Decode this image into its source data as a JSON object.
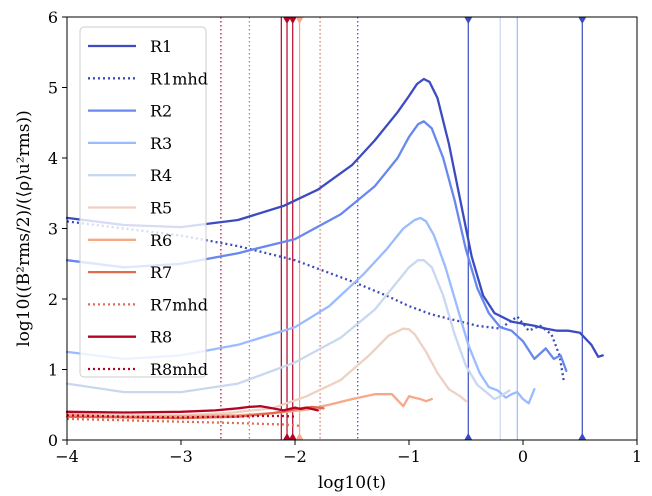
{
  "chart_data": {
    "type": "line",
    "title": "",
    "xlabel": "log10(t)",
    "ylabel": "log10((B²rms/2)/(⟨ρ⟩u²rms))",
    "xlim": [
      -4,
      1
    ],
    "ylim": [
      0,
      6
    ],
    "xticks": [
      -4,
      -3,
      -2,
      -1,
      0,
      1
    ],
    "yticks": [
      0,
      1,
      2,
      3,
      4,
      5,
      6
    ],
    "xtick_labels": [
      "−4",
      "−3",
      "−2",
      "−1",
      "0",
      "1"
    ],
    "ytick_labels": [
      "0",
      "1",
      "2",
      "3",
      "4",
      "5",
      "6"
    ],
    "grid": false,
    "legend_position": "upper-left",
    "colors": {
      "R1": "#3b4cc0",
      "R2": "#6788ee",
      "R3": "#9abbff",
      "R4": "#c9d7f0",
      "R5": "#edd1c2",
      "R6": "#f7a889",
      "R7": "#e26952",
      "R8": "#b40426"
    },
    "series": [
      {
        "name": "R1",
        "style": "solid",
        "color": "#3b4cc0",
        "x": [
          -4.0,
          -3.5,
          -3.0,
          -2.5,
          -2.1,
          -1.8,
          -1.5,
          -1.3,
          -1.1,
          -1.0,
          -0.93,
          -0.87,
          -0.82,
          -0.75,
          -0.65,
          -0.55,
          -0.45,
          -0.35,
          -0.25,
          -0.1,
          0.0,
          0.1,
          0.2,
          0.3,
          0.4,
          0.5,
          0.6,
          0.66,
          0.7
        ],
        "y": [
          3.15,
          3.05,
          3.02,
          3.12,
          3.32,
          3.55,
          3.9,
          4.25,
          4.65,
          4.88,
          5.05,
          5.12,
          5.08,
          4.85,
          4.2,
          3.4,
          2.6,
          2.05,
          1.8,
          1.68,
          1.65,
          1.62,
          1.58,
          1.55,
          1.55,
          1.52,
          1.35,
          1.18,
          1.2
        ]
      },
      {
        "name": "R1mhd",
        "style": "dotted",
        "color": "#3b4cc0",
        "x": [
          -4.0,
          -3.5,
          -3.0,
          -2.5,
          -2.0,
          -1.5,
          -1.2,
          -1.0,
          -0.8,
          -0.6,
          -0.4,
          -0.2,
          -0.05,
          0.05,
          0.15,
          0.25,
          0.32,
          0.36
        ],
        "y": [
          3.1,
          3.0,
          2.9,
          2.75,
          2.55,
          2.25,
          2.05,
          1.9,
          1.78,
          1.7,
          1.62,
          1.58,
          1.75,
          1.55,
          1.62,
          1.5,
          1.2,
          0.82
        ]
      },
      {
        "name": "R2",
        "style": "solid",
        "color": "#6788ee",
        "x": [
          -4.0,
          -3.5,
          -3.0,
          -2.5,
          -2.0,
          -1.6,
          -1.3,
          -1.1,
          -1.0,
          -0.92,
          -0.87,
          -0.8,
          -0.7,
          -0.6,
          -0.5,
          -0.4,
          -0.3,
          -0.2,
          -0.1,
          0.0,
          0.1,
          0.2,
          0.27,
          0.33,
          0.38
        ],
        "y": [
          2.55,
          2.45,
          2.5,
          2.65,
          2.85,
          3.2,
          3.6,
          4.0,
          4.3,
          4.48,
          4.52,
          4.42,
          4.0,
          3.4,
          2.7,
          2.15,
          1.8,
          1.6,
          1.55,
          1.4,
          1.15,
          1.3,
          1.15,
          1.2,
          0.98
        ]
      },
      {
        "name": "R3",
        "style": "solid",
        "color": "#9abbff",
        "x": [
          -4.0,
          -3.5,
          -3.0,
          -2.5,
          -2.0,
          -1.7,
          -1.4,
          -1.2,
          -1.05,
          -0.95,
          -0.9,
          -0.85,
          -0.78,
          -0.68,
          -0.58,
          -0.48,
          -0.38,
          -0.3,
          -0.22,
          -0.15,
          -0.1,
          -0.05,
          0.0,
          0.05,
          0.1
        ],
        "y": [
          1.25,
          1.15,
          1.2,
          1.35,
          1.6,
          1.9,
          2.35,
          2.7,
          3.0,
          3.12,
          3.15,
          3.1,
          2.9,
          2.45,
          1.9,
          1.35,
          0.95,
          0.75,
          0.7,
          0.6,
          0.65,
          0.68,
          0.58,
          0.52,
          0.72
        ]
      },
      {
        "name": "R4",
        "style": "solid",
        "color": "#c9d7f0",
        "x": [
          -4.0,
          -3.5,
          -3.0,
          -2.5,
          -2.0,
          -1.6,
          -1.3,
          -1.1,
          -1.0,
          -0.92,
          -0.87,
          -0.8,
          -0.7,
          -0.6,
          -0.5,
          -0.4,
          -0.3,
          -0.25,
          -0.2,
          -0.12
        ],
        "y": [
          0.8,
          0.68,
          0.68,
          0.8,
          1.1,
          1.45,
          1.85,
          2.25,
          2.45,
          2.55,
          2.55,
          2.45,
          2.05,
          1.5,
          1.05,
          0.78,
          0.65,
          0.58,
          0.62,
          0.7
        ]
      },
      {
        "name": "R5",
        "style": "solid",
        "color": "#edd1c2",
        "x": [
          -4.0,
          -3.5,
          -3.0,
          -2.6,
          -2.2,
          -1.9,
          -1.6,
          -1.35,
          -1.18,
          -1.05,
          -1.0,
          -0.95,
          -0.85,
          -0.75,
          -0.65,
          -0.55,
          -0.5
        ],
        "y": [
          0.38,
          0.35,
          0.35,
          0.38,
          0.45,
          0.62,
          0.85,
          1.2,
          1.48,
          1.58,
          1.57,
          1.5,
          1.25,
          0.95,
          0.72,
          0.62,
          0.55
        ]
      },
      {
        "name": "R6",
        "style": "solid",
        "color": "#f7a889",
        "x": [
          -4.0,
          -3.5,
          -3.0,
          -2.5,
          -2.2,
          -1.9,
          -1.7,
          -1.5,
          -1.3,
          -1.15,
          -1.05,
          -1.0,
          -0.95,
          -0.9,
          -0.85,
          -0.8
        ],
        "y": [
          0.36,
          0.33,
          0.34,
          0.35,
          0.38,
          0.43,
          0.5,
          0.58,
          0.65,
          0.65,
          0.48,
          0.62,
          0.6,
          0.58,
          0.55,
          0.58
        ]
      },
      {
        "name": "R7",
        "style": "solid",
        "color": "#e26952",
        "x": [
          -4.0,
          -3.5,
          -3.0,
          -2.5,
          -2.2,
          -2.05,
          -1.95,
          -1.85,
          -1.75
        ],
        "y": [
          0.33,
          0.32,
          0.31,
          0.33,
          0.38,
          0.42,
          0.45,
          0.47,
          0.45
        ]
      },
      {
        "name": "R7mhd",
        "style": "dotted",
        "color": "#e26952",
        "x": [
          -4.0,
          -3.5,
          -3.0,
          -2.5,
          -2.1,
          -1.95
        ],
        "y": [
          0.3,
          0.28,
          0.26,
          0.24,
          0.22,
          0.2
        ]
      },
      {
        "name": "R8",
        "style": "solid",
        "color": "#b40426",
        "x": [
          -4.0,
          -3.5,
          -3.0,
          -2.7,
          -2.5,
          -2.4,
          -2.3,
          -2.2,
          -2.1,
          -2.05,
          -2.0,
          -1.95,
          -1.9,
          -1.85,
          -1.8
        ],
        "y": [
          0.4,
          0.39,
          0.4,
          0.42,
          0.45,
          0.47,
          0.48,
          0.45,
          0.42,
          0.44,
          0.46,
          0.44,
          0.46,
          0.44,
          0.42
        ]
      },
      {
        "name": "R8mhd",
        "style": "dotted",
        "color": "#b40426",
        "x": [
          -4.0,
          -3.5,
          -3.0,
          -2.6,
          -2.3,
          -2.1,
          -2.0
        ],
        "y": [
          0.35,
          0.33,
          0.32,
          0.33,
          0.34,
          0.34,
          0.33
        ]
      }
    ],
    "vlines": [
      {
        "x": -2.65,
        "color": "#b40426",
        "style": "dotted",
        "marker": false
      },
      {
        "x": -2.4,
        "color": "#e26952",
        "style": "dotted",
        "marker": false
      },
      {
        "x": -2.12,
        "color": "#b40426",
        "style": "solid",
        "marker": false
      },
      {
        "x": -2.07,
        "color": "#b40426",
        "style": "solid",
        "marker": true
      },
      {
        "x": -2.02,
        "color": "#b40426",
        "style": "solid",
        "marker": true
      },
      {
        "x": -1.96,
        "color": "#f7a889",
        "style": "solid",
        "marker": true
      },
      {
        "x": -1.78,
        "color": "#e26952",
        "style": "dotted",
        "marker": false
      },
      {
        "x": -1.45,
        "color": "#3b4cc0",
        "style": "dotted",
        "marker": false
      },
      {
        "x": -0.48,
        "color": "#3b4cc0",
        "style": "solid",
        "marker": true
      },
      {
        "x": -0.2,
        "color": "#c9d7f0",
        "style": "solid",
        "marker": false
      },
      {
        "x": -0.05,
        "color": "#9abbff",
        "style": "solid",
        "marker": false
      },
      {
        "x": 0.52,
        "color": "#3b4cc0",
        "style": "solid",
        "marker": true
      }
    ]
  }
}
